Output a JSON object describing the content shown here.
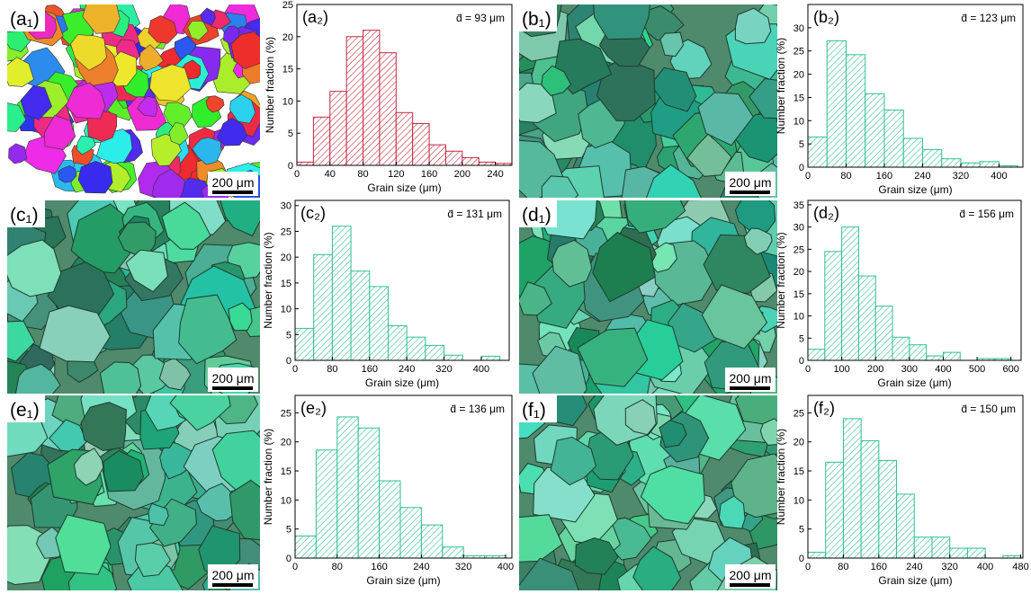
{
  "micrographs": [
    {
      "label": "(a₁)",
      "scale_bar": "200 μm"
    },
    {
      "label": "(b₁)",
      "scale_bar": "200 μm"
    },
    {
      "label": "(c₁)",
      "scale_bar": "200 μm"
    },
    {
      "label": "(d₁)",
      "scale_bar": "200 μm"
    },
    {
      "label": "(e₁)",
      "scale_bar": "200 μm"
    },
    {
      "label": "(f₁)",
      "scale_bar": "200 μm"
    }
  ],
  "chart_data": [
    {
      "type": "histogram",
      "title": "(a₂)",
      "annotation": "d̄ = 93 μm",
      "x_label": "Grain size (μm)",
      "y_label": "Number fraction (%)",
      "color": "#c8283c",
      "bins": [
        0,
        20,
        40,
        60,
        80,
        100,
        120,
        140,
        160,
        180,
        200,
        220,
        240,
        260
      ],
      "values": [
        0.5,
        7.5,
        11.5,
        20,
        21,
        17.5,
        8.2,
        6.5,
        3.2,
        2.2,
        1.2,
        0.5,
        0.3
      ],
      "xlim": [
        0,
        260
      ],
      "xticks": [
        0,
        40,
        80,
        120,
        160,
        200,
        240
      ],
      "ylim": [
        0,
        25
      ],
      "yticks": [
        0,
        5,
        10,
        15,
        20,
        25
      ]
    },
    {
      "type": "histogram",
      "title": "(b₂)",
      "annotation": "d̄ = 123 μm",
      "x_label": "Grain size (μm)",
      "y_label": "Number fraction (%)",
      "color": "#2fbf95",
      "bins": [
        0,
        40,
        80,
        120,
        160,
        200,
        240,
        280,
        320,
        360,
        400,
        440
      ],
      "values": [
        6.5,
        27.2,
        24.2,
        15.8,
        12.3,
        6.2,
        3.8,
        1.8,
        0.9,
        1.2,
        0.3
      ],
      "xlim": [
        0,
        450
      ],
      "xticks": [
        0,
        80,
        160,
        240,
        320,
        400
      ],
      "ylim": [
        0,
        35
      ],
      "yticks": [
        0,
        5,
        10,
        15,
        20,
        25,
        30
      ]
    },
    {
      "type": "histogram",
      "title": "(c₂)",
      "annotation": "d̄ = 131 μm",
      "x_label": "Grain size (μm)",
      "y_label": "Number fraction (%)",
      "color": "#2fbf95",
      "bins": [
        0,
        40,
        80,
        120,
        160,
        200,
        240,
        280,
        320,
        360,
        400,
        440
      ],
      "values": [
        6.2,
        20.5,
        26,
        17.3,
        14.3,
        6.7,
        4.5,
        2.9,
        1,
        0,
        0.8
      ],
      "xlim": [
        0,
        460
      ],
      "xticks": [
        0,
        80,
        160,
        240,
        320,
        400
      ],
      "ylim": [
        0,
        31
      ],
      "yticks": [
        0,
        5,
        10,
        15,
        20,
        25,
        30
      ]
    },
    {
      "type": "histogram",
      "title": "(d₂)",
      "annotation": "d̄ = 156 μm",
      "x_label": "Grain size (μm)",
      "y_label": "Number fraction (%)",
      "color": "#2fbf95",
      "bins": [
        0,
        50,
        100,
        150,
        200,
        250,
        300,
        350,
        400,
        450,
        500,
        550,
        600
      ],
      "values": [
        2.5,
        24.5,
        30,
        19,
        12.2,
        5.2,
        3.5,
        1,
        1.8,
        0,
        0.4,
        0.4
      ],
      "xlim": [
        0,
        630
      ],
      "xticks": [
        0,
        100,
        200,
        300,
        400,
        500,
        600
      ],
      "ylim": [
        0,
        36
      ],
      "yticks": [
        0,
        5,
        10,
        15,
        20,
        25,
        30,
        35
      ]
    },
    {
      "type": "histogram",
      "title": "(e₂)",
      "annotation": "d̄ = 136 μm",
      "x_label": "Grain size (μm)",
      "y_label": "Number fraction (%)",
      "color": "#2fbf95",
      "bins": [
        0,
        40,
        80,
        120,
        160,
        200,
        240,
        280,
        320,
        360,
        400
      ],
      "values": [
        3.8,
        18.6,
        24.3,
        22.4,
        13.3,
        8.7,
        5.7,
        1.9,
        0.4,
        0.4
      ],
      "xlim": [
        0,
        412
      ],
      "xticks": [
        0,
        80,
        160,
        240,
        320,
        400
      ],
      "ylim": [
        0,
        28
      ],
      "yticks": [
        0,
        5,
        10,
        15,
        20,
        25
      ]
    },
    {
      "type": "histogram",
      "title": "(f₂)",
      "annotation": "d̄ = 150 μm",
      "x_label": "Grain size (μm)",
      "y_label": "Number fraction (%)",
      "color": "#2fbf95",
      "bins": [
        0,
        40,
        80,
        120,
        160,
        200,
        240,
        280,
        320,
        360,
        400,
        440,
        480
      ],
      "values": [
        1,
        16.5,
        24,
        20.2,
        16.8,
        11,
        3.6,
        3.6,
        1.7,
        1.7,
        0,
        0.4
      ],
      "xlim": [
        0,
        485
      ],
      "xticks": [
        0,
        80,
        160,
        240,
        320,
        400,
        480
      ],
      "ylim": [
        0,
        28
      ],
      "yticks": [
        0,
        5,
        10,
        15,
        20,
        25
      ]
    }
  ]
}
